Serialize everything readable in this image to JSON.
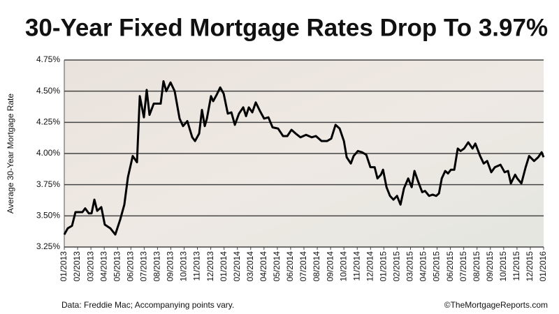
{
  "chart_data": {
    "type": "line",
    "title": "30-Year Fixed Mortgage Rates Drop To 3.97%",
    "y_label": "Average 30-Year Mortgage Rate",
    "source": "Data: Freddie Mac; Accompanying points vary.",
    "credit": "©TheMortgageReports.com",
    "color": "#000000",
    "grid": true,
    "x": [
      0,
      0.26,
      0.58,
      0.84,
      1.36,
      1.57,
      1.84,
      2.05,
      2.26,
      2.47,
      2.78,
      3.04,
      3.46,
      3.83,
      4.2,
      4.51,
      4.78,
      5.14,
      5.46,
      5.67,
      5.98,
      6.19,
      6.4,
      6.72,
      7.24,
      7.45,
      7.66,
      7.98,
      8.29,
      8.66,
      8.92,
      9.24,
      9.61,
      9.82,
      10.13,
      10.34,
      10.55,
      10.71,
      11.02,
      11.18,
      11.44,
      11.71,
      11.97,
      12.28,
      12.55,
      12.81,
      13.12,
      13.44,
      13.65,
      13.86,
      14.12,
      14.38,
      14.7,
      15.01,
      15.33,
      15.64,
      16.06,
      16.43,
      16.75,
      17.06,
      17.38,
      17.74,
      18.16,
      18.58,
      18.9,
      19.32,
      19.74,
      20.05,
      20.37,
      20.68,
      21,
      21.21,
      21.52,
      21.73,
      22.05,
      22.36,
      22.68,
      22.99,
      23.31,
      23.52,
      23.78,
      23.94,
      24.2,
      24.46,
      24.72,
      24.99,
      25.25,
      25.51,
      25.83,
      26.09,
      26.3,
      26.56,
      26.88,
      27.09,
      27.4,
      27.66,
      27.93,
      28.14,
      28.35,
      28.61,
      28.82,
      29.04,
      29.29,
      29.55,
      29.76,
      30.03,
      30.34,
      30.66,
      30.87,
      31.23,
      31.5,
      31.76,
      32.07,
      32.34,
      32.76,
      33.07,
      33.33,
      33.54,
      33.86,
      34.02,
      34.33,
      34.65,
      34.91,
      35.28,
      35.59,
      35.85,
      36
    ],
    "values": [
      3.35,
      3.4,
      3.42,
      3.53,
      3.53,
      3.56,
      3.52,
      3.52,
      3.63,
      3.54,
      3.57,
      3.43,
      3.4,
      3.35,
      3.47,
      3.59,
      3.81,
      3.98,
      3.93,
      4.46,
      4.29,
      4.51,
      4.31,
      4.4,
      4.4,
      4.58,
      4.5,
      4.57,
      4.5,
      4.28,
      4.22,
      4.26,
      4.13,
      4.1,
      4.16,
      4.35,
      4.22,
      4.28,
      4.46,
      4.42,
      4.47,
      4.53,
      4.48,
      4.32,
      4.33,
      4.23,
      4.32,
      4.37,
      4.3,
      4.37,
      4.33,
      4.41,
      4.34,
      4.28,
      4.29,
      4.21,
      4.2,
      4.14,
      4.14,
      4.19,
      4.16,
      4.13,
      4.15,
      4.13,
      4.14,
      4.1,
      4.1,
      4.12,
      4.23,
      4.2,
      4.1,
      3.97,
      3.92,
      3.98,
      4.02,
      4.01,
      3.99,
      3.89,
      3.89,
      3.8,
      3.83,
      3.87,
      3.73,
      3.66,
      3.63,
      3.66,
      3.59,
      3.72,
      3.8,
      3.73,
      3.86,
      3.78,
      3.69,
      3.7,
      3.66,
      3.67,
      3.66,
      3.68,
      3.8,
      3.86,
      3.84,
      3.87,
      3.87,
      4.04,
      4.02,
      4.04,
      4.09,
      4.04,
      4.08,
      3.98,
      3.92,
      3.94,
      3.85,
      3.89,
      3.91,
      3.85,
      3.86,
      3.76,
      3.83,
      3.8,
      3.76,
      3.89,
      3.98,
      3.94,
      3.97,
      4.01,
      3.97
    ],
    "xlim": [
      0,
      36
    ],
    "xticks": [
      {
        "value": 0,
        "label": "01/2013"
      },
      {
        "value": 1,
        "label": "02/2013"
      },
      {
        "value": 2,
        "label": "03/2013"
      },
      {
        "value": 3,
        "label": "04/2013"
      },
      {
        "value": 4,
        "label": "05/2013"
      },
      {
        "value": 5,
        "label": "06/2013"
      },
      {
        "value": 6,
        "label": "07/2013"
      },
      {
        "value": 7,
        "label": "08/2013"
      },
      {
        "value": 8,
        "label": "09/2013"
      },
      {
        "value": 9,
        "label": "10/2013"
      },
      {
        "value": 10,
        "label": "11/2013"
      },
      {
        "value": 11,
        "label": "12/2013"
      },
      {
        "value": 12,
        "label": "01/2014"
      },
      {
        "value": 13,
        "label": "02/2014"
      },
      {
        "value": 14,
        "label": "03/2014"
      },
      {
        "value": 15,
        "label": "04/2014"
      },
      {
        "value": 16,
        "label": "05/2014"
      },
      {
        "value": 17,
        "label": "06/2014"
      },
      {
        "value": 18,
        "label": "07/2014"
      },
      {
        "value": 19,
        "label": "08/2014"
      },
      {
        "value": 20,
        "label": "09/2014"
      },
      {
        "value": 21,
        "label": "10/2014"
      },
      {
        "value": 22,
        "label": "11/2014"
      },
      {
        "value": 23,
        "label": "12/2014"
      },
      {
        "value": 24,
        "label": "01/2015"
      },
      {
        "value": 25,
        "label": "02/2015"
      },
      {
        "value": 26,
        "label": "03/2015"
      },
      {
        "value": 27,
        "label": "04/2015"
      },
      {
        "value": 28,
        "label": "05/2015"
      },
      {
        "value": 29,
        "label": "06/2015"
      },
      {
        "value": 30,
        "label": "07/2015"
      },
      {
        "value": 31,
        "label": "08/2015"
      },
      {
        "value": 32,
        "label": "09/2015"
      },
      {
        "value": 33,
        "label": "10/2015"
      },
      {
        "value": 34,
        "label": "11/2015"
      },
      {
        "value": 35,
        "label": "12/2015"
      },
      {
        "value": 36,
        "label": "01/2016"
      }
    ],
    "ylim": [
      3.25,
      4.75
    ],
    "yticks": [
      {
        "value": 3.25,
        "label": "3.25%"
      },
      {
        "value": 3.5,
        "label": "3.50%"
      },
      {
        "value": 3.75,
        "label": "3.75%"
      },
      {
        "value": 4,
        "label": "4.00%"
      },
      {
        "value": 4.25,
        "label": "4.25%"
      },
      {
        "value": 4.5,
        "label": "4.50%"
      },
      {
        "value": 4.75,
        "label": "4.75%"
      }
    ]
  }
}
